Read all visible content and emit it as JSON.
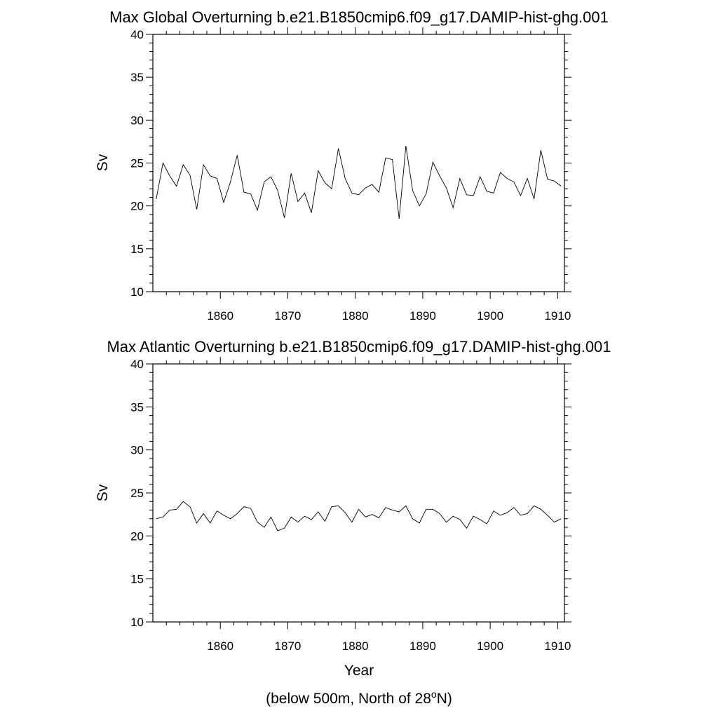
{
  "chart_data": [
    {
      "type": "line",
      "title": "Max Global Overturning b.e21.B1850cmip6.f09_g17.DAMIP-hist-ghg.001",
      "xlabel": "",
      "ylabel": "Sv",
      "xlim": [
        1850,
        1911
      ],
      "ylim": [
        10,
        40
      ],
      "x_ticks": [
        1860,
        1870,
        1880,
        1890,
        1900,
        1910
      ],
      "y_ticks": [
        10,
        15,
        20,
        25,
        30,
        35,
        40
      ],
      "grid": false,
      "x": [
        1850.5,
        1851.5,
        1852.5,
        1853.5,
        1854.5,
        1855.5,
        1856.5,
        1857.5,
        1858.5,
        1859.5,
        1860.5,
        1861.5,
        1862.5,
        1863.5,
        1864.5,
        1865.5,
        1866.5,
        1867.5,
        1868.5,
        1869.5,
        1870.5,
        1871.5,
        1872.5,
        1873.5,
        1874.5,
        1875.5,
        1876.5,
        1877.5,
        1878.5,
        1879.5,
        1880.5,
        1881.5,
        1882.5,
        1883.5,
        1884.5,
        1885.5,
        1886.5,
        1887.5,
        1888.5,
        1889.5,
        1890.5,
        1891.5,
        1892.5,
        1893.5,
        1894.5,
        1895.5,
        1896.5,
        1897.5,
        1898.5,
        1899.5,
        1900.5,
        1901.5,
        1902.5,
        1903.5,
        1904.5,
        1905.5,
        1906.5,
        1907.5,
        1908.5,
        1909.5,
        1910.5
      ],
      "series": [
        {
          "values": [
            20.8,
            25.0,
            23.5,
            22.3,
            24.8,
            23.6,
            19.6,
            24.8,
            23.5,
            23.2,
            20.4,
            22.8,
            25.9,
            21.6,
            21.4,
            19.5,
            22.8,
            23.4,
            21.8,
            18.6,
            23.8,
            20.5,
            21.5,
            19.2,
            24.1,
            22.7,
            22.0,
            26.7,
            23.2,
            21.5,
            21.3,
            22.1,
            22.5,
            21.6,
            25.6,
            25.4,
            18.5,
            27.0,
            21.8,
            20.0,
            21.4,
            25.1,
            23.5,
            22.1,
            19.8,
            23.2,
            21.3,
            21.2,
            23.4,
            21.7,
            21.5,
            23.9,
            23.2,
            22.8,
            21.2,
            23.2,
            20.8,
            26.5,
            23.1,
            22.9,
            22.3
          ]
        }
      ]
    },
    {
      "type": "line",
      "title": "Max Atlantic Overturning b.e21.B1850cmip6.f09_g17.DAMIP-hist-ghg.001",
      "xlabel": "Year",
      "ylabel": "Sv",
      "xlim": [
        1850,
        1911
      ],
      "ylim": [
        10,
        40
      ],
      "x_ticks": [
        1860,
        1870,
        1880,
        1890,
        1900,
        1910
      ],
      "y_ticks": [
        10,
        15,
        20,
        25,
        30,
        35,
        40
      ],
      "grid": false,
      "x": [
        1850.5,
        1851.5,
        1852.5,
        1853.5,
        1854.5,
        1855.5,
        1856.5,
        1857.5,
        1858.5,
        1859.5,
        1860.5,
        1861.5,
        1862.5,
        1863.5,
        1864.5,
        1865.5,
        1866.5,
        1867.5,
        1868.5,
        1869.5,
        1870.5,
        1871.5,
        1872.5,
        1873.5,
        1874.5,
        1875.5,
        1876.5,
        1877.5,
        1878.5,
        1879.5,
        1880.5,
        1881.5,
        1882.5,
        1883.5,
        1884.5,
        1885.5,
        1886.5,
        1887.5,
        1888.5,
        1889.5,
        1890.5,
        1891.5,
        1892.5,
        1893.5,
        1894.5,
        1895.5,
        1896.5,
        1897.5,
        1898.5,
        1899.5,
        1900.5,
        1901.5,
        1902.5,
        1903.5,
        1904.5,
        1905.5,
        1906.5,
        1907.5,
        1908.5,
        1909.5,
        1910.5
      ],
      "series": [
        {
          "values": [
            22.0,
            22.2,
            23.0,
            23.1,
            24.0,
            23.4,
            21.5,
            22.6,
            21.5,
            22.9,
            22.4,
            22.0,
            22.6,
            23.4,
            23.2,
            21.6,
            21.0,
            22.2,
            20.6,
            20.9,
            22.2,
            21.6,
            22.3,
            21.9,
            22.8,
            21.7,
            23.4,
            23.5,
            22.7,
            21.6,
            23.1,
            22.2,
            22.5,
            22.1,
            23.3,
            23.0,
            22.8,
            23.5,
            22.0,
            21.5,
            23.1,
            23.1,
            22.6,
            21.6,
            22.3,
            21.9,
            20.9,
            22.3,
            21.9,
            21.4,
            22.9,
            22.4,
            22.7,
            23.3,
            22.4,
            22.6,
            23.5,
            23.1,
            22.4,
            21.6,
            22.0
          ]
        }
      ]
    }
  ],
  "footnote": {
    "prefix": "(below 500m, North of 28",
    "superscript": "o",
    "suffix": "N)"
  }
}
